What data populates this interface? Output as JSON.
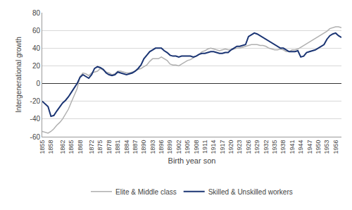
{
  "chart_data": {
    "type": "line",
    "xlabel": "Birth year son",
    "ylabel": "Intergenerational growth",
    "x": [
      1855,
      1856,
      1857,
      1858,
      1859,
      1860,
      1861,
      1862,
      1863,
      1864,
      1865,
      1866,
      1867,
      1868,
      1869,
      1870,
      1871,
      1872,
      1873,
      1874,
      1875,
      1876,
      1877,
      1878,
      1879,
      1880,
      1881,
      1882,
      1883,
      1884,
      1885,
      1886,
      1887,
      1888,
      1889,
      1890,
      1891,
      1892,
      1893,
      1894,
      1895,
      1896,
      1897,
      1898,
      1899,
      1900,
      1901,
      1902,
      1903,
      1904,
      1905,
      1906,
      1907,
      1908,
      1909,
      1910,
      1911,
      1912,
      1913,
      1914,
      1915,
      1916,
      1917,
      1918,
      1919,
      1920,
      1921,
      1922,
      1923,
      1924,
      1925,
      1926,
      1927,
      1928,
      1929,
      1930,
      1931,
      1932,
      1933,
      1934,
      1935,
      1936,
      1937,
      1938,
      1939,
      1940,
      1941,
      1942,
      1943,
      1944,
      1945,
      1946,
      1947,
      1948,
      1949,
      1950,
      1951,
      1952,
      1953,
      1954,
      1955,
      1956,
      1957,
      1958
    ],
    "series": [
      {
        "name": "Elite & Middle class",
        "color": "#b0b0b0",
        "values": [
          -54,
          -55,
          -56,
          -54,
          -51,
          -47,
          -44,
          -40,
          -35,
          -29,
          -21,
          -14,
          -6,
          8,
          12,
          11,
          9,
          12,
          13,
          14,
          17,
          15,
          13,
          12,
          10,
          11,
          14,
          14,
          13,
          12,
          12,
          13,
          14,
          16,
          17,
          19,
          21,
          25,
          28,
          28,
          28,
          30,
          28,
          26,
          22,
          21,
          21,
          20,
          22,
          24,
          26,
          27,
          29,
          31,
          33,
          36,
          37,
          39,
          40,
          39,
          38,
          37,
          38,
          39,
          38,
          38,
          39,
          40,
          40,
          41,
          42,
          43,
          44,
          44,
          44,
          43,
          43,
          42,
          40,
          39,
          38,
          38,
          39,
          38,
          36,
          36,
          38,
          38,
          39,
          41,
          43,
          45,
          47,
          49,
          51,
          53,
          55,
          57,
          59,
          62,
          63,
          64,
          64,
          63
        ]
      },
      {
        "name": "Skilled & Unskilled workers",
        "color": "#1a3473",
        "values": [
          -20,
          -23,
          -26,
          -37,
          -36,
          -31,
          -26,
          -22,
          -19,
          -15,
          -10,
          -5,
          0,
          7,
          10,
          8,
          6,
          10,
          17,
          19,
          18,
          16,
          12,
          10,
          9,
          10,
          13,
          12,
          11,
          10,
          11,
          12,
          14,
          17,
          21,
          28,
          32,
          36,
          38,
          40,
          40,
          40,
          37,
          35,
          32,
          31,
          31,
          30,
          31,
          31,
          31,
          31,
          30,
          31,
          33,
          34,
          34,
          35,
          36,
          36,
          35,
          34,
          34,
          35,
          35,
          38,
          40,
          42,
          42,
          43,
          44,
          53,
          55,
          57,
          56,
          54,
          52,
          50,
          48,
          46,
          44,
          42,
          40,
          40,
          38,
          36,
          36,
          36,
          37,
          30,
          31,
          35,
          36,
          37,
          38,
          40,
          42,
          44,
          50,
          54,
          56,
          57,
          54,
          52
        ]
      }
    ],
    "xlim": [
      1855,
      1958
    ],
    "xticks": [
      1855,
      1858,
      1862,
      1865,
      1868,
      1872,
      1875,
      1878,
      1881,
      1884,
      1887,
      1890,
      1893,
      1896,
      1899,
      1902,
      1905,
      1908,
      1911,
      1914,
      1917,
      1920,
      1923,
      1926,
      1929,
      1932,
      1935,
      1938,
      1941,
      1944,
      1947,
      1950,
      1953,
      1956
    ],
    "ylim": [
      -60,
      80
    ],
    "yticks": [
      -60,
      -40,
      -20,
      0,
      20,
      40,
      60,
      80
    ],
    "grid": true,
    "legend": "bottom"
  }
}
